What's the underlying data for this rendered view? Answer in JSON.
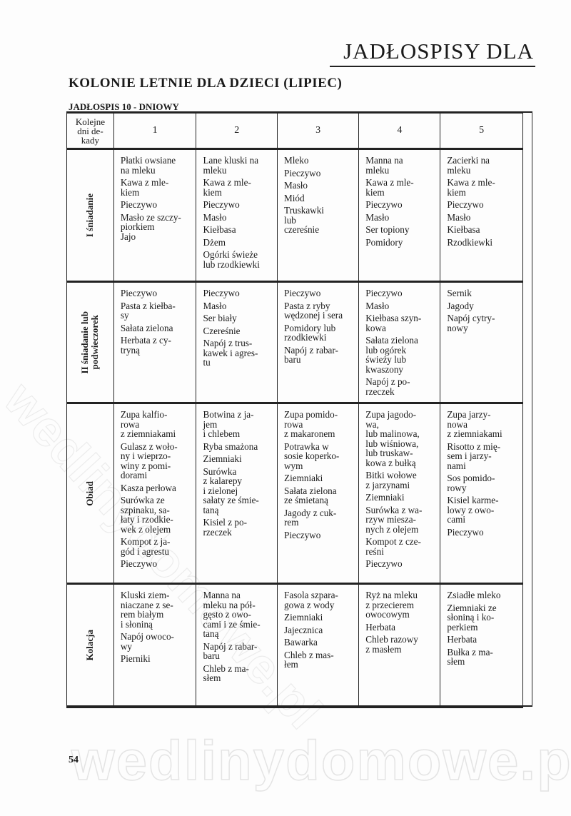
{
  "header": {
    "running_title": "JADŁOSPISY DLA",
    "title": "KOLONIE LETNIE DLA DZIECI (LIPIEC)",
    "subtitle": "JADŁOSPIS 10 - DNIOWY"
  },
  "table": {
    "corner": "Kolejne\ndni de-\nkady",
    "days": [
      "1",
      "2",
      "3",
      "4",
      "5"
    ],
    "rows": [
      {
        "meal": "I śniadanie",
        "cells": [
          [
            "Płatki owsiane\nna mleku",
            "Kawa z mle-\nkiem",
            "Pieczywo",
            "Masło ze szczy-\npiorkiem\nJajo"
          ],
          [
            "Lane kluski na\nmleku",
            "Kawa z mle-\nkiem",
            "Pieczywo",
            "Masło",
            "Kiełbasa",
            "Dżem",
            "Ogórki świeże\nlub rzodkiewki"
          ],
          [
            "Mleko",
            "Pieczywo",
            "Masło",
            "Miód",
            "Truskawki\nlub\nczereśnie"
          ],
          [
            "Manna na\nmleku",
            "Kawa z mle-\nkiem",
            "Pieczywo",
            "Masło",
            "Ser topiony",
            "Pomidory"
          ],
          [
            "Zacierki na\nmleku",
            "Kawa z mle-\nkiem",
            "Pieczywo",
            "Masło",
            "Kiełbasa",
            "Rzodkiewki"
          ]
        ]
      },
      {
        "meal": "II śniadanie lub\npodwieczorek",
        "cells": [
          [
            "Pieczywo",
            "Pasta z kiełba-\nsy",
            "Sałata zielona",
            "Herbata z cy-\ntryną"
          ],
          [
            "Pieczywo",
            "Masło",
            "Ser biały",
            "Czereśnie",
            "Napój z trus-\nkawek i agres-\ntu"
          ],
          [
            "Pieczywo",
            "Pasta z ryby\nwędzonej i sera",
            "Pomidory lub\nrzodkiewki",
            "Napój z rabar-\nbaru"
          ],
          [
            "Pieczywo",
            "Masło",
            "Kiełbasa szyn-\nkowa",
            "Sałata zielona\nlub ogórek\nświeży lub\nkwaszony",
            "Napój z po-\nrzeczek"
          ],
          [
            "Sernik",
            "Jagody",
            "Napój cytry-\nnowy"
          ]
        ]
      },
      {
        "meal": "Obiad",
        "cells": [
          [
            "Zupa kalfio-\nrowa\nz ziemniakami",
            "Gulasz z woło-\nny i wieprzo-\nwiny z pomi-\ndorami",
            "Kasza perłowa",
            "Surówka ze\nszpinaku, sa-\nłaty i rzodkie-\nwek z olejem",
            "Kompot z ja-\ngód i agrestu",
            "Pieczywo"
          ],
          [
            "Botwina z ja-\njem\ni chlebem",
            "Ryba smażona",
            "Ziemniaki",
            "Surówka\nz kalarepy\ni zielonej\nsałaty ze śmie-\ntaną",
            "Kisiel z po-\nrzeczek"
          ],
          [
            "Zupa pomido-\nrowa\nz makaronem",
            "Potrawka w\nsosie koperko-\nwym",
            "Ziemniaki",
            "Sałata zielona\nze śmietaną",
            "Jagody z cuk-\nrem",
            "Pieczywo"
          ],
          [
            "Zupa jagodo-\nwa,\nlub malinowa,\nlub wiśniowa,\nlub truskaw-\nkowa z bułką",
            "Bitki wołowe\nz jarzynami",
            "Ziemniaki",
            "Surówka z wa-\nrzyw miesza-\nnych z olejem",
            "Kompot z cze-\nreśni",
            "Pieczywo"
          ],
          [
            "Zupa jarzy-\nnowa\nz ziemniakami",
            "Risotto z mię-\nsem i jarzy-\nnami",
            "Sos pomido-\nrowy",
            "Kisiel karme-\nlowy z owo-\ncami",
            "Pieczywo"
          ]
        ]
      },
      {
        "meal": "Kolacja",
        "cells": [
          [
            "Kluski ziem-\nniaczane z se-\nrem białym\ni słoniną",
            "Napój owoco-\nwy",
            "Pierniki"
          ],
          [
            "Manna na\nmleku na pół-\ngęsto z owo-\ncami i ze śmie-\ntaną",
            "Napój z rabar-\nbaru",
            "Chleb z ma-\nsłem"
          ],
          [
            "Fasola szpara-\ngowa z wody",
            "Ziemniaki",
            "Jajecznica",
            "Bawarka",
            "Chleb z mas-\nłem"
          ],
          [
            "Ryż na mleku\nz przecierem\nowocowym",
            "Herbata",
            "Chleb razowy\nz masłem"
          ],
          [
            "Zsiadłe mleko",
            "Ziemniaki ze\nsłoniną i ko-\nperkiem",
            "Herbata",
            "Bułka z ma-\nsłem"
          ]
        ]
      }
    ]
  },
  "page_number": "54",
  "watermark": "wedlinydomowe.pl"
}
